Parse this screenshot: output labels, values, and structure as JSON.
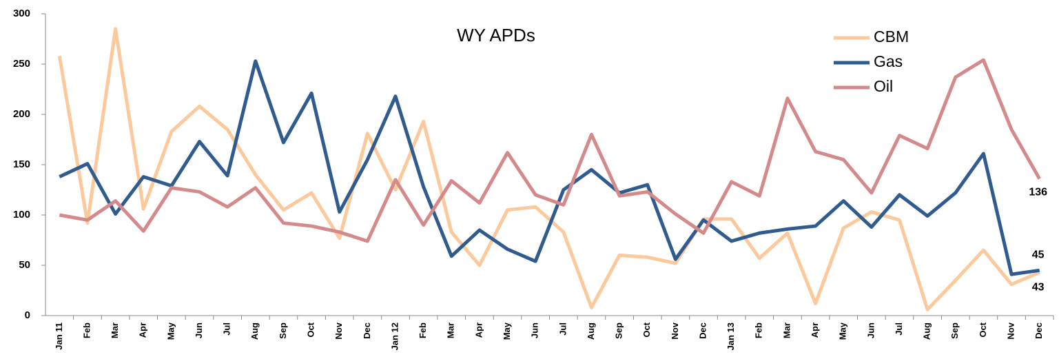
{
  "chart_data": {
    "type": "line",
    "title": "WY APDs",
    "categories": [
      "Jan 11",
      "Feb",
      "Mar",
      "Apr",
      "May",
      "Jun",
      "Jul",
      "Aug",
      "Sep",
      "Oct",
      "Nov",
      "Dec",
      "Jan 12",
      "Feb",
      "Mar",
      "Apr",
      "May",
      "Jun",
      "Jul",
      "Aug",
      "Sep",
      "Oct",
      "Nov",
      "Dec",
      "Jan 13",
      "Feb",
      "Mar",
      "Apr",
      "May",
      "Jun",
      "Jul",
      "Aug",
      "Sep",
      "Oct",
      "Nov",
      "Dec"
    ],
    "series": [
      {
        "name": "CBM",
        "color": "#fcc99c",
        "values": [
          258,
          92,
          285,
          106,
          183,
          208,
          185,
          140,
          105,
          122,
          77,
          181,
          125,
          193,
          83,
          50,
          105,
          108,
          83,
          8,
          60,
          58,
          52,
          96,
          96,
          57,
          82,
          12,
          87,
          103,
          95,
          6,
          35,
          65,
          31,
          43
        ]
      },
      {
        "name": "Gas",
        "color": "#2f5b8f",
        "values": [
          138,
          151,
          101,
          138,
          129,
          173,
          139,
          253,
          172,
          221,
          103,
          155,
          218,
          128,
          59,
          85,
          66,
          54,
          125,
          145,
          122,
          130,
          56,
          95,
          74,
          82,
          86,
          89,
          114,
          88,
          120,
          99,
          122,
          161,
          41,
          45
        ]
      },
      {
        "name": "Oil",
        "color": "#d48a8a",
        "values": [
          100,
          95,
          114,
          84,
          127,
          123,
          108,
          127,
          92,
          89,
          83,
          74,
          135,
          90,
          134,
          112,
          162,
          120,
          110,
          180,
          119,
          123,
          101,
          82,
          133,
          119,
          216,
          163,
          155,
          122,
          179,
          166,
          237,
          254,
          185,
          136
        ]
      }
    ],
    "ylim": [
      0,
      300
    ],
    "yticks": [
      0,
      50,
      100,
      150,
      200,
      250,
      300
    ],
    "legend": "top-right"
  }
}
